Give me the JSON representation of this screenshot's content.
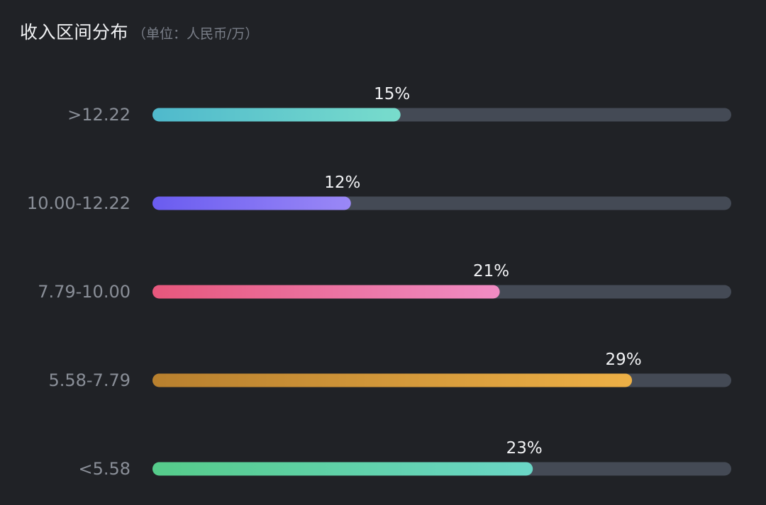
{
  "header": {
    "title": "收入区间分布",
    "unit": "（单位：人民币/万）"
  },
  "chart_data": {
    "type": "bar",
    "orientation": "horizontal",
    "title": "收入区间分布",
    "subtitle": "（单位：人民币/万）",
    "categories": [
      ">12.22",
      "10.00-12.22",
      "7.79-10.00",
      "5.58-7.79",
      "<5.58"
    ],
    "values": [
      15,
      12,
      21,
      29,
      23
    ],
    "value_labels": [
      "15%",
      "12%",
      "21%",
      "29%",
      "23%"
    ],
    "xlim": [
      0,
      35
    ],
    "grid": false,
    "legend": "none",
    "track_color": "#444a55",
    "bar_gradients": [
      [
        "#4fb9cc",
        "#78dccc"
      ],
      [
        "#6a5cf0",
        "#9a88f6"
      ],
      [
        "#e7577c",
        "#f08cc4"
      ],
      [
        "#b8802e",
        "#edb046"
      ],
      [
        "#55cc8a",
        "#6ad6c6"
      ]
    ]
  }
}
